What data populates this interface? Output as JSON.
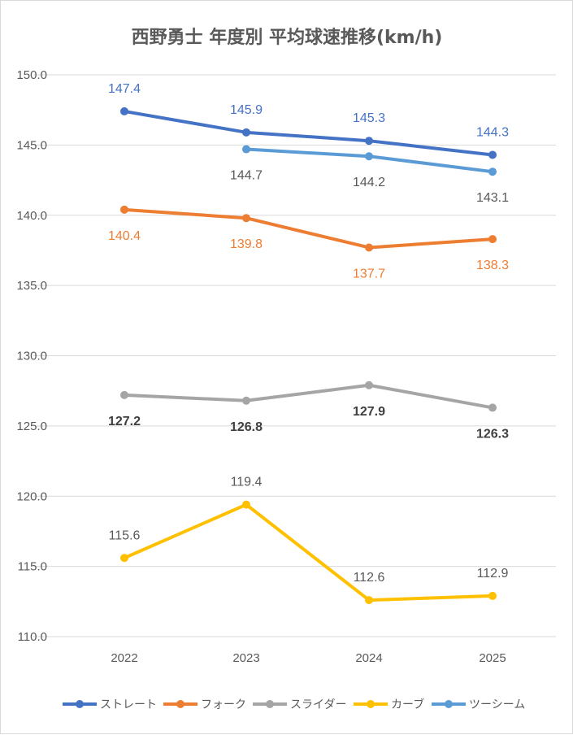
{
  "chart_data": {
    "type": "line",
    "title": "西野勇士 年度別 平均球速推移(km/h)",
    "xlabel": "",
    "ylabel": "",
    "categories": [
      "2022",
      "2023",
      "2024",
      "2025"
    ],
    "ylim": [
      110,
      150
    ],
    "yticks": [
      "110.0",
      "115.0",
      "120.0",
      "125.0",
      "130.0",
      "135.0",
      "140.0",
      "145.0",
      "150.0"
    ],
    "grid": true,
    "legend": "bottom",
    "series": [
      {
        "name": "ストレート",
        "color": "#4472C4",
        "label_color": "#4472C4",
        "label_pos": "above",
        "label_bold": false,
        "values": [
          147.4,
          145.9,
          145.3,
          144.3
        ],
        "labels": [
          "147.4",
          "145.9",
          "145.3",
          "144.3"
        ]
      },
      {
        "name": "フォーク",
        "color": "#ED7D31",
        "label_color": "#ED7D31",
        "label_pos": "below",
        "label_bold": false,
        "values": [
          140.4,
          139.8,
          137.7,
          138.3
        ],
        "labels": [
          "140.4",
          "139.8",
          "137.7",
          "138.3"
        ]
      },
      {
        "name": "スライダー",
        "color": "#A5A5A5",
        "label_color": "#404040",
        "label_pos": "below",
        "label_bold": true,
        "values": [
          127.2,
          126.8,
          127.9,
          126.3
        ],
        "labels": [
          "127.2",
          "126.8",
          "127.9",
          "126.3"
        ]
      },
      {
        "name": "カーブ",
        "color": "#FFC000",
        "label_color": "#595959",
        "label_pos": "above",
        "label_bold": false,
        "values": [
          115.6,
          119.4,
          112.6,
          112.9
        ],
        "labels": [
          "115.6",
          "119.4",
          "112.6",
          "112.9"
        ]
      },
      {
        "name": "ツーシーム",
        "color": "#5B9BD5",
        "label_color": "#595959",
        "label_pos": "below",
        "label_bold": false,
        "values": [
          null,
          144.7,
          144.2,
          143.1
        ],
        "labels": [
          null,
          "144.7",
          "144.2",
          "143.1"
        ]
      }
    ]
  }
}
